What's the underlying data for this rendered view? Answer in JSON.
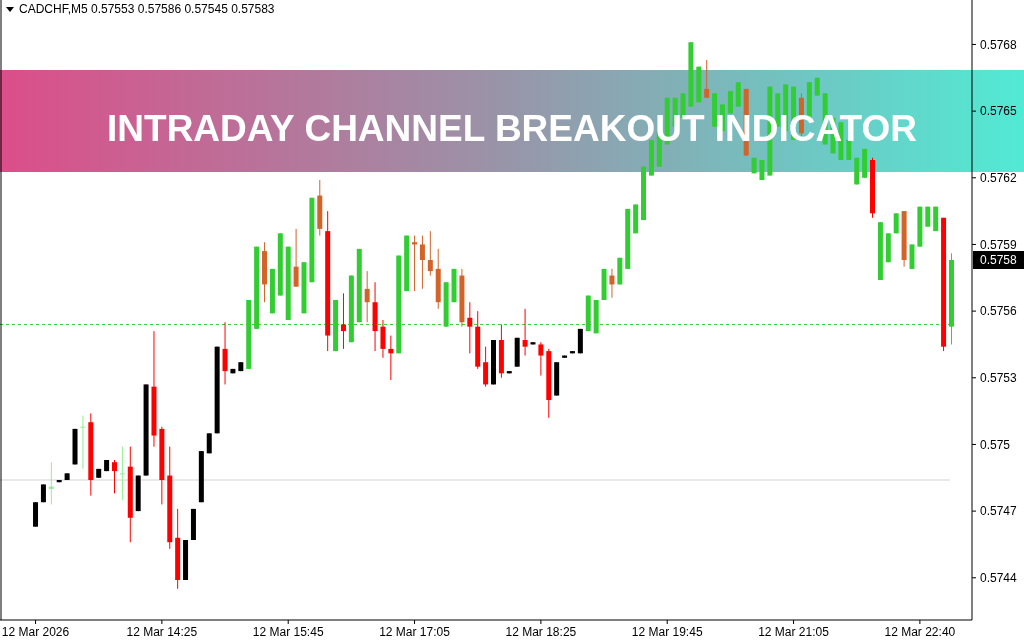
{
  "chart_data": {
    "type": "candlestick",
    "title": "INTRADAY CHANNEL BREAKOUT INDICATOR",
    "subtitle": "CADCHF,M5 0.57553 0.57586 0.57545 0.57583",
    "categories": [
      "12 Mar 2026",
      null,
      null,
      null,
      null,
      null,
      null,
      null,
      null,
      null,
      null,
      null,
      null,
      null,
      null,
      null,
      "12 Mar 14:25",
      null,
      null,
      null,
      null,
      null,
      null,
      null,
      null,
      null,
      null,
      null,
      null,
      null,
      null,
      null,
      "12 Mar 15:45",
      null,
      null,
      null,
      null,
      null,
      null,
      null,
      null,
      null,
      null,
      null,
      null,
      null,
      null,
      null,
      "12 Mar 17:05",
      null,
      null,
      null,
      null,
      null,
      null,
      null,
      null,
      null,
      null,
      null,
      null,
      null,
      null,
      null,
      "12 Mar 18:25",
      null,
      null,
      null,
      null,
      null,
      null,
      null,
      null,
      null,
      null,
      null,
      null,
      null,
      null,
      null,
      "12 Mar 19:45",
      null,
      null,
      null,
      null,
      null,
      null,
      null,
      null,
      null,
      null,
      null,
      null,
      null,
      null,
      null,
      "12 Mar 21:05",
      null,
      null,
      null,
      null,
      null,
      null,
      null,
      null,
      null,
      null,
      null,
      null,
      null,
      null,
      null,
      "12 Mar 22:40",
      null,
      null,
      null,
      null
    ],
    "ohlc": [
      [
        0.57463,
        0.57474,
        0.57463,
        0.57474
      ],
      [
        0.57474,
        0.57482,
        0.57474,
        0.57482
      ],
      [
        0.5748,
        0.57492,
        0.57473,
        0.57481
      ],
      [
        0.57483,
        0.57484,
        0.57483,
        0.57484
      ],
      [
        0.57484,
        0.57487,
        0.57484,
        0.57487
      ],
      [
        0.57491,
        0.57507,
        0.57491,
        0.57507
      ],
      [
        0.57508,
        0.57513,
        0.57489,
        0.57508
      ],
      [
        0.5751,
        0.57514,
        0.57477,
        0.57484
      ],
      [
        0.57485,
        0.57489,
        0.57485,
        0.57489
      ],
      [
        0.57488,
        0.57493,
        0.57488,
        0.57493
      ],
      [
        0.57492,
        0.57493,
        0.57478,
        0.57488
      ],
      [
        0.57487,
        0.57499,
        0.57475,
        0.57487
      ],
      [
        0.5749,
        0.57499,
        0.57456,
        0.57467
      ],
      [
        0.5747,
        0.57486,
        0.5747,
        0.57486
      ],
      [
        0.57486,
        0.57527,
        0.57486,
        0.57527
      ],
      [
        0.57526,
        0.57551,
        0.57499,
        0.57504
      ],
      [
        0.57507,
        0.57508,
        0.57473,
        0.57484
      ],
      [
        0.57486,
        0.57499,
        0.57453,
        0.57456
      ],
      [
        0.57458,
        0.57471,
        0.57435,
        0.57439
      ],
      [
        0.57439,
        0.57457,
        0.57439,
        0.57457
      ],
      [
        0.57457,
        0.57471,
        0.57457,
        0.57471
      ],
      [
        0.57474,
        0.57497,
        0.57474,
        0.57497
      ],
      [
        0.57496,
        0.57505,
        0.57496,
        0.57505
      ],
      [
        0.57505,
        0.57544,
        0.57505,
        0.57544
      ],
      [
        0.57543,
        0.57555,
        0.57527,
        0.57533
      ],
      [
        0.57532,
        0.57534,
        0.57532,
        0.57534
      ],
      [
        0.57533,
        0.57537,
        0.57533,
        0.57537
      ],
      [
        0.57534,
        0.57565,
        0.57534,
        0.57565
      ],
      [
        0.57552,
        0.57589,
        0.57552,
        0.57589
      ],
      [
        0.57587,
        0.57591,
        0.57564,
        0.57572
      ],
      [
        0.57559,
        0.57579,
        0.57559,
        0.57579
      ],
      [
        0.57567,
        0.57595,
        0.57567,
        0.57595
      ],
      [
        0.57556,
        0.57589,
        0.57556,
        0.57589
      ],
      [
        0.5758,
        0.57597,
        0.57571,
        0.57571
      ],
      [
        0.57559,
        0.57582,
        0.57559,
        0.57582
      ],
      [
        0.57573,
        0.57611,
        0.57573,
        0.57611
      ],
      [
        0.57612,
        0.57619,
        0.57594,
        0.57597
      ],
      [
        0.57596,
        0.57605,
        0.57542,
        0.57549
      ],
      [
        0.57542,
        0.57565,
        0.57542,
        0.57565
      ],
      [
        0.57554,
        0.57568,
        0.57543,
        0.57551
      ],
      [
        0.57546,
        0.57576,
        0.57546,
        0.57576
      ],
      [
        0.57555,
        0.57588,
        0.57555,
        0.57588
      ],
      [
        0.5757,
        0.57578,
        0.57555,
        0.57564
      ],
      [
        0.57564,
        0.57573,
        0.57542,
        0.57551
      ],
      [
        0.57553,
        0.57556,
        0.57539,
        0.57543
      ],
      [
        0.57543,
        0.57549,
        0.57529,
        0.57541
      ],
      [
        0.57541,
        0.57585,
        0.57541,
        0.57585
      ],
      [
        0.57569,
        0.57594,
        0.57569,
        0.57594
      ],
      [
        0.57591,
        0.57594,
        0.57569,
        0.5759
      ],
      [
        0.5759,
        0.57594,
        0.5757,
        0.57583
      ],
      [
        0.57583,
        0.57596,
        0.57576,
        0.57578
      ],
      [
        0.57579,
        0.57588,
        0.57561,
        0.57564
      ],
      [
        0.57553,
        0.57573,
        0.57553,
        0.57573
      ],
      [
        0.57564,
        0.57579,
        0.57564,
        0.57579
      ],
      [
        0.57576,
        0.57579,
        0.57553,
        0.57555
      ],
      [
        0.57557,
        0.57564,
        0.57541,
        0.57553
      ],
      [
        0.57553,
        0.5756,
        0.57534,
        0.57535
      ],
      [
        0.57537,
        0.57544,
        0.57526,
        0.57527
      ],
      [
        0.57527,
        0.57547,
        0.57527,
        0.57547
      ],
      [
        0.57547,
        0.57554,
        0.5753,
        0.57532
      ],
      [
        0.57532,
        0.57533,
        0.57532,
        0.57533
      ],
      [
        0.57535,
        0.57548,
        0.57535,
        0.57548
      ],
      [
        0.57547,
        0.57561,
        0.5754,
        0.57544
      ],
      [
        0.57545,
        0.57546,
        0.57545,
        0.57546
      ],
      [
        0.57545,
        0.57546,
        0.57531,
        0.5754
      ],
      [
        0.57542,
        0.57543,
        0.57512,
        0.5752
      ],
      [
        0.57522,
        0.57537,
        0.57522,
        0.57537
      ],
      [
        0.57539,
        0.5754,
        0.57539,
        0.5754
      ],
      [
        0.57541,
        0.57542,
        0.57541,
        0.57542
      ],
      [
        0.57541,
        0.57552,
        0.57541,
        0.57552
      ],
      [
        0.57551,
        0.57567,
        0.57551,
        0.57567
      ],
      [
        0.5755,
        0.57565,
        0.5755,
        0.57565
      ],
      [
        0.57565,
        0.57579,
        0.57565,
        0.57579
      ],
      [
        0.57576,
        0.57579,
        0.57566,
        0.57572
      ],
      [
        0.57572,
        0.57584,
        0.57572,
        0.57584
      ],
      [
        0.57579,
        0.57606,
        0.57579,
        0.57606
      ],
      [
        0.57595,
        0.57608,
        0.57595,
        0.57608
      ],
      [
        0.57601,
        0.57625,
        0.57601,
        0.57625
      ],
      [
        0.57621,
        0.57637,
        0.57621,
        0.57637
      ],
      [
        0.57625,
        0.57641,
        0.57625,
        0.57641
      ],
      [
        0.57635,
        0.57656,
        0.57635,
        0.57656
      ],
      [
        0.57643,
        0.57656,
        0.57643,
        0.57656
      ],
      [
        0.57647,
        0.57658,
        0.57647,
        0.57658
      ],
      [
        0.57652,
        0.57681,
        0.57652,
        0.57681
      ],
      [
        0.57654,
        0.5767,
        0.57654,
        0.5767
      ],
      [
        0.5766,
        0.57673,
        0.57656,
        0.57656
      ],
      [
        0.57643,
        0.57658,
        0.57643,
        0.57658
      ],
      [
        0.57641,
        0.57653,
        0.57641,
        0.57653
      ],
      [
        0.57649,
        0.57659,
        0.57649,
        0.57659
      ],
      [
        0.57652,
        0.57663,
        0.57652,
        0.57663
      ],
      [
        0.5766,
        0.5766,
        0.5763,
        0.5763
      ],
      [
        0.57622,
        0.57629,
        0.57622,
        0.57629
      ],
      [
        0.57619,
        0.57628,
        0.57619,
        0.57628
      ],
      [
        0.57621,
        0.57661,
        0.57621,
        0.57661
      ],
      [
        0.57643,
        0.57658,
        0.57643,
        0.57658
      ],
      [
        0.57641,
        0.57662,
        0.57641,
        0.57662
      ],
      [
        0.57637,
        0.57661,
        0.57637,
        0.57661
      ],
      [
        0.57656,
        0.57658,
        0.57638,
        0.5764
      ],
      [
        0.57646,
        0.57663,
        0.57646,
        0.57663
      ],
      [
        0.57657,
        0.57665,
        0.57657,
        0.57665
      ],
      [
        0.57635,
        0.57658,
        0.57635,
        0.57658
      ],
      [
        0.57631,
        0.57647,
        0.57631,
        0.57647
      ],
      [
        0.57628,
        0.57645,
        0.57628,
        0.57645
      ],
      [
        0.57628,
        0.57637,
        0.57628,
        0.57637
      ],
      [
        0.57617,
        0.57629,
        0.57617,
        0.57629
      ],
      [
        0.5762,
        0.57633,
        0.5762,
        0.57633
      ],
      [
        0.57628,
        0.57629,
        0.57602,
        0.57604
      ],
      [
        0.57574,
        0.576,
        0.57574,
        0.576
      ],
      [
        0.57582,
        0.57595,
        0.57582,
        0.57595
      ],
      [
        0.57595,
        0.57604,
        0.57595,
        0.57604
      ],
      [
        0.57605,
        0.57605,
        0.5758,
        0.57583
      ],
      [
        0.57579,
        0.5759,
        0.57579,
        0.5759
      ],
      [
        0.57589,
        0.57607,
        0.57589,
        0.57607
      ],
      [
        0.57598,
        0.57607,
        0.57598,
        0.57607
      ],
      [
        0.57596,
        0.57607,
        0.57596,
        0.57607
      ],
      [
        0.57602,
        0.57602,
        0.57542,
        0.57544
      ],
      [
        0.57553,
        0.57586,
        0.57545,
        0.57583
      ]
    ],
    "colors": [
      "#000000",
      "#000000",
      "#90ee90",
      "#000000",
      "#000000",
      "#000000",
      "#90ee90",
      "#ff0000",
      "#000000",
      "#000000",
      "#ff0000",
      "#90ee90",
      "#ff0000",
      "#000000",
      "#000000",
      "#ff0000",
      "#ff0000",
      "#ff0000",
      "#ff0000",
      "#000000",
      "#000000",
      "#000000",
      "#000000",
      "#000000",
      "#ff0000",
      "#000000",
      "#000000",
      "#32cd32",
      "#32cd32",
      "#d2642a",
      "#32cd32",
      "#32cd32",
      "#32cd32",
      "#d2642a",
      "#32cd32",
      "#32cd32",
      "#d2642a",
      "#ff0000",
      "#32cd32",
      "#ff0000",
      "#32cd32",
      "#32cd32",
      "#d2642a",
      "#ff0000",
      "#ff0000",
      "#ff0000",
      "#32cd32",
      "#32cd32",
      "#d2642a",
      "#d2642a",
      "#d2642a",
      "#d2642a",
      "#32cd32",
      "#32cd32",
      "#d2642a",
      "#ff0000",
      "#ff0000",
      "#ff0000",
      "#000000",
      "#ff0000",
      "#000000",
      "#000000",
      "#ff0000",
      "#000000",
      "#ff0000",
      "#ff0000",
      "#000000",
      "#000000",
      "#000000",
      "#000000",
      "#32cd32",
      "#32cd32",
      "#32cd32",
      "#d2642a",
      "#32cd32",
      "#32cd32",
      "#32cd32",
      "#32cd32",
      "#32cd32",
      "#32cd32",
      "#32cd32",
      "#32cd32",
      "#32cd32",
      "#32cd32",
      "#32cd32",
      "#d2642a",
      "#32cd32",
      "#32cd32",
      "#32cd32",
      "#32cd32",
      "#d2642a",
      "#32cd32",
      "#32cd32",
      "#32cd32",
      "#32cd32",
      "#32cd32",
      "#32cd32",
      "#d2642a",
      "#32cd32",
      "#32cd32",
      "#32cd32",
      "#32cd32",
      "#32cd32",
      "#32cd32",
      "#32cd32",
      "#32cd32",
      "#ff0000",
      "#32cd32",
      "#32cd32",
      "#32cd32",
      "#d2642a",
      "#32cd32",
      "#32cd32",
      "#32cd32",
      "#32cd32",
      "#ff0000",
      "#32cd32"
    ],
    "ylim": [
      0.57421,
      0.577
    ],
    "yticks": [
      0.5744,
      0.5747,
      0.575,
      0.5753,
      0.5756,
      0.5759,
      0.5762,
      0.5765,
      0.5768
    ],
    "ref_lines": [
      {
        "axis": "y",
        "value": 0.57554,
        "color": "#32cd32",
        "line_style": "dashed"
      },
      {
        "axis": "y",
        "value": 0.57484,
        "color": "#d3d3d3",
        "line_style": "solid"
      }
    ],
    "annotations": [
      "0.5758"
    ],
    "grid": false
  }
}
